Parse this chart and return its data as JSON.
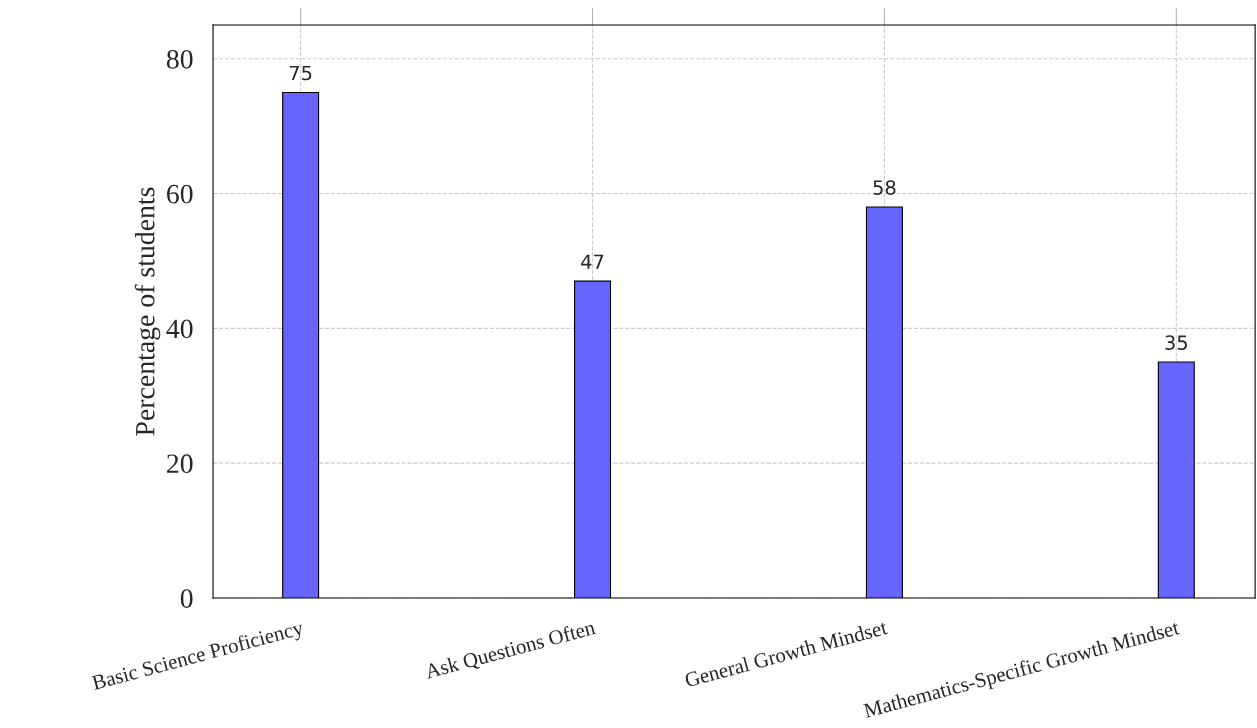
{
  "chart_data": {
    "type": "bar",
    "categories": [
      "Basic Science Proficiency",
      "Ask Questions Often",
      "General Growth Mindset",
      "Mathematics-Specific Growth Mindset"
    ],
    "values": [
      75,
      47,
      58,
      35
    ],
    "color": "#6666ff",
    "ylabel": "Percentage of students",
    "ylim": [
      0,
      85
    ],
    "yticks": [
      0,
      20,
      40,
      60,
      80
    ],
    "grid": true,
    "data_labels": true
  }
}
